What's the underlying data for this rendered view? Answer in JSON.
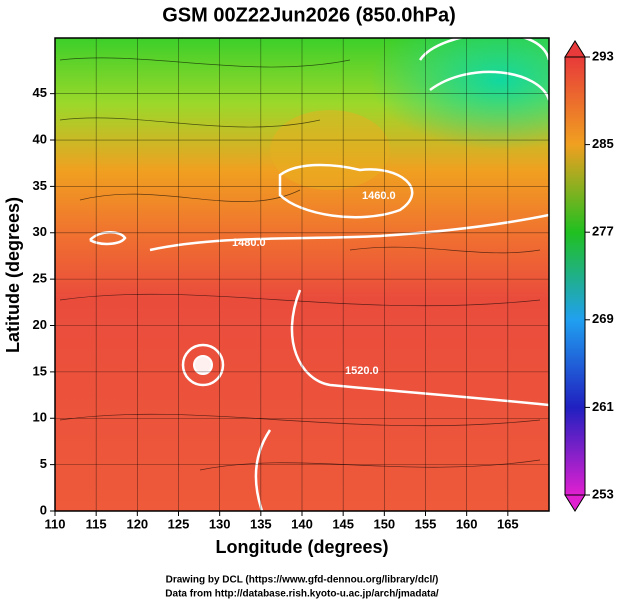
{
  "map": {
    "title": "GSM 00Z22Jun2026 (850.0hPa)",
    "xlabel": "Longitude (degrees)",
    "ylabel": "Latitude  (degrees)",
    "xlim": [
      110,
      170
    ],
    "ylim": [
      0,
      51
    ],
    "xticks": [
      110,
      115,
      120,
      125,
      130,
      135,
      140,
      145,
      150,
      155,
      160,
      165
    ],
    "yticks": [
      0,
      5,
      10,
      15,
      20,
      25,
      30,
      35,
      40,
      45
    ],
    "colorbar": {
      "lim": [
        253,
        293
      ],
      "ticks": [
        253,
        261,
        269,
        277,
        285,
        293
      ]
    },
    "contour_labels": [
      "1480.0",
      "1460.0",
      "1520.0"
    ],
    "footer": [
      "Drawing by DCL (https://www.gfd-dennou.org/library/dcl/)",
      "Data from http://database.rish.kyoto-u.ac.jp/arch/jmadata/"
    ]
  }
}
